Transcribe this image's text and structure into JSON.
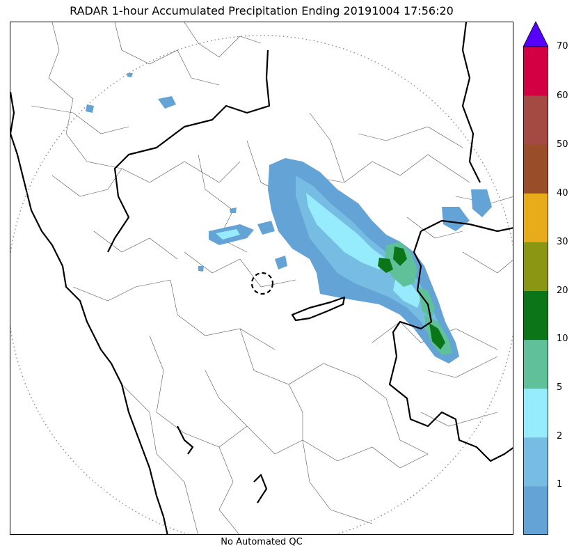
{
  "title": "RADAR 1-hour Accumulated Precipitation Ending 20191004 17:56:20",
  "footer_note": "No Automated QC",
  "colorbar": {
    "bands": [
      {
        "color": "#64a3d6"
      },
      {
        "color": "#77bde3"
      },
      {
        "color": "#96ecfc"
      },
      {
        "color": "#5ec19a"
      },
      {
        "color": "#0c7518"
      },
      {
        "color": "#8b9612"
      },
      {
        "color": "#e8ab19"
      },
      {
        "color": "#9a4d29"
      },
      {
        "color": "#a44a43"
      },
      {
        "color": "#d40044"
      }
    ],
    "extend_color": "#5500ff",
    "ticks": [
      {
        "label": "1"
      },
      {
        "label": "2"
      },
      {
        "label": "5"
      },
      {
        "label": "10"
      },
      {
        "label": "20"
      },
      {
        "label": "30"
      },
      {
        "label": "40"
      },
      {
        "label": "50"
      },
      {
        "label": "60"
      },
      {
        "label": "70"
      }
    ]
  },
  "map": {
    "range_ring": "dotted-circle",
    "radar_site_marker": "dashed-circle",
    "state_borders": "thick-black",
    "district_borders": "thin-gray"
  }
}
